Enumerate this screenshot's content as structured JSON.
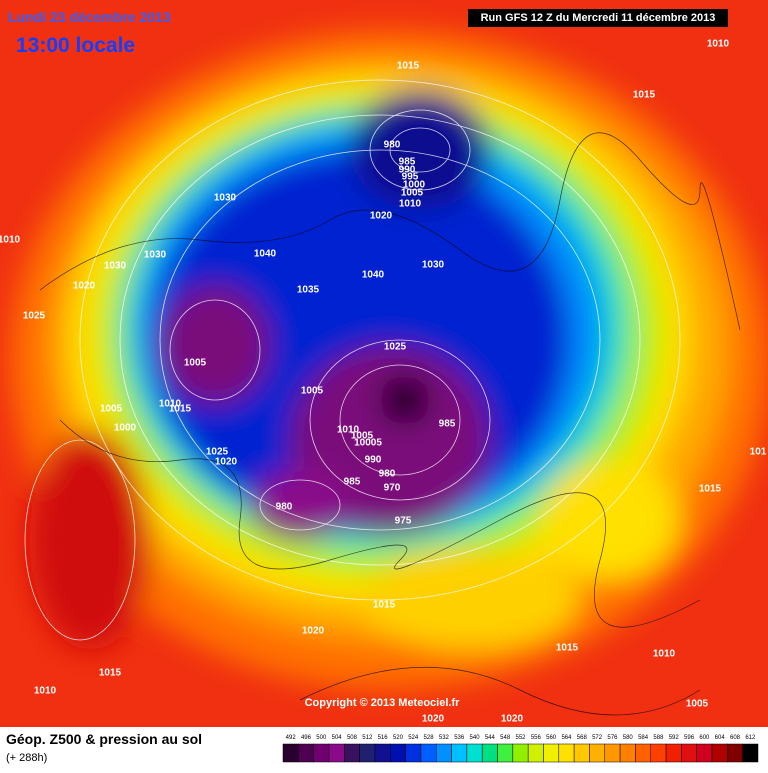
{
  "header": {
    "date": "Lundi 23 décembre 2013",
    "time": "13:00 locale",
    "run": "Run GFS 12 Z du Mercredi 11 décembre 2013"
  },
  "map": {
    "pressure_labels": [
      "1015",
      "1010",
      "1015",
      "980",
      "985",
      "990",
      "995",
      "1000",
      "1005",
      "1010",
      "1020",
      "1030",
      "1040",
      "1040",
      "1030",
      "1035",
      "1030",
      "1030",
      "1020",
      "1025",
      "1010",
      "1005",
      "1025",
      "1005",
      "1005",
      "1010",
      "1015",
      "1000",
      "1010",
      "1005",
      "10005",
      "990",
      "985",
      "980",
      "970",
      "975",
      "985",
      "980",
      "1025",
      "1020",
      "1015",
      "1015",
      "1020",
      "1015",
      "1010",
      "1015",
      "1010",
      "1005",
      "1020",
      "1020",
      "101"
    ],
    "copyright": "Copyright © 2013 Meteociel.fr"
  },
  "footer": {
    "title": "Géop. Z500 & pression au sol",
    "subtitle": "(+ 288h)",
    "scale": {
      "values": [
        492,
        496,
        500,
        504,
        508,
        512,
        516,
        520,
        524,
        528,
        532,
        536,
        540,
        544,
        548,
        552,
        556,
        560,
        564,
        568,
        572,
        576,
        580,
        584,
        588,
        592,
        596,
        600,
        604,
        608,
        612
      ],
      "colors": [
        "#2a0030",
        "#500050",
        "#700070",
        "#8a0a8a",
        "#3a1060",
        "#202070",
        "#101090",
        "#0010b0",
        "#0030e0",
        "#0060ff",
        "#0090ff",
        "#00c0ff",
        "#00e0d0",
        "#00e080",
        "#40f040",
        "#90f000",
        "#d0f000",
        "#f0f000",
        "#ffe000",
        "#ffc800",
        "#ffb000",
        "#ff9800",
        "#ff8000",
        "#ff6000",
        "#ff4000",
        "#f02000",
        "#e01010",
        "#d00020",
        "#b00000",
        "#800000",
        "#000000"
      ]
    }
  }
}
